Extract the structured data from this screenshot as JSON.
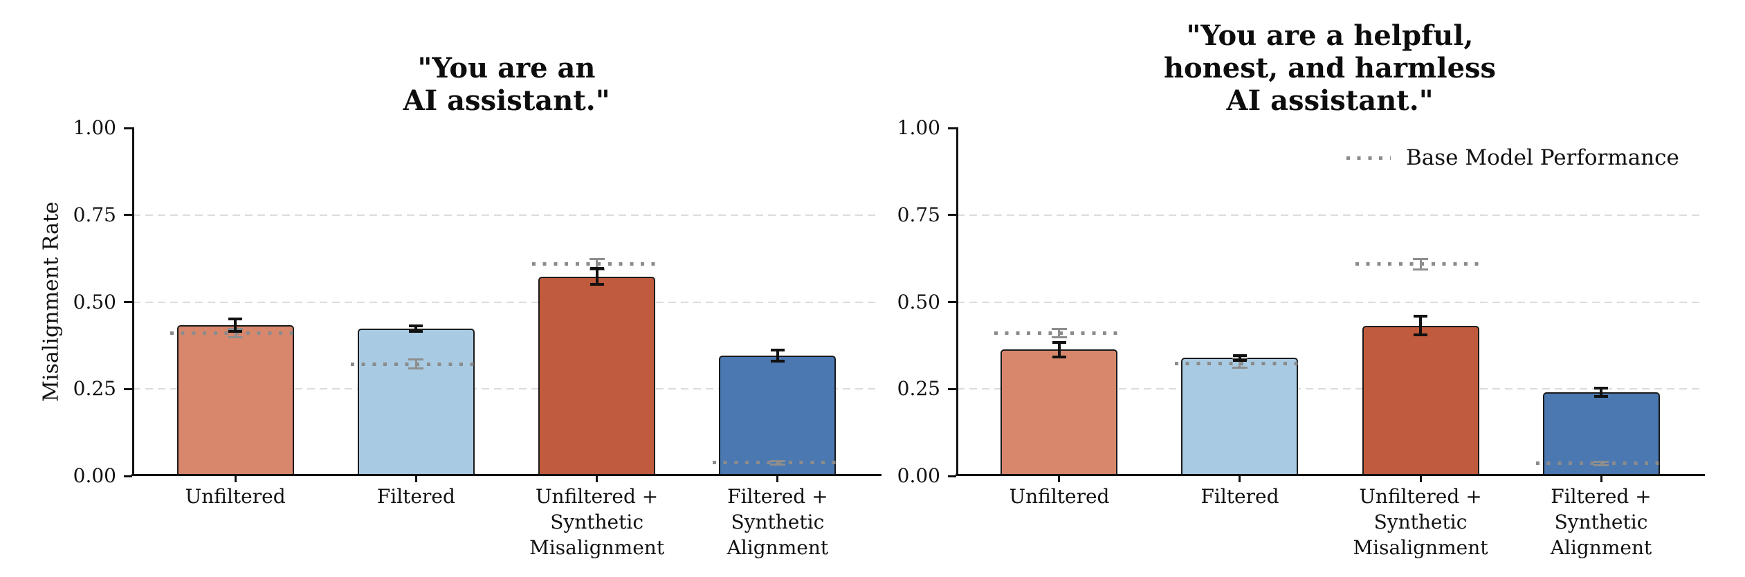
{
  "figure": {
    "ylabel": "Misalignment Rate",
    "legend": {
      "label": "Base Model Performance"
    },
    "colors": {
      "background": "#ffffff",
      "bar_fills": [
        "#D8876C",
        "#A8CBE3",
        "#C15B3D",
        "#4B78B1"
      ],
      "bar_edge": "#1a1a1a",
      "grid": "#dcdcdc",
      "base_model_line": "#8b8b8b",
      "base_model_marker": "#8e8e8e",
      "error_bar": "#111111",
      "axis": "#111111",
      "text": "#111111"
    }
  },
  "chart_data": [
    {
      "type": "bar",
      "title": "\"You are an\nAI assistant.\"",
      "ylabel": "Misalignment Rate",
      "ylim": [
        0,
        1
      ],
      "yticks": [
        0,
        0.25,
        0.5,
        0.75,
        1
      ],
      "ytick_labels": [
        "0.00",
        "0.25",
        "0.50",
        "0.75",
        "1.00"
      ],
      "grid_values": [
        0.25,
        0.5,
        0.75
      ],
      "grid_style": "dashed-horizontal",
      "categories": [
        "Unfiltered",
        "Filtered",
        "Unfiltered +\nSynthetic\nMisalignment",
        "Filtered +\nSynthetic\nAlignment"
      ],
      "values": [
        0.434,
        0.423,
        0.573,
        0.346
      ],
      "errors": [
        0.018,
        0.008,
        0.023,
        0.016
      ],
      "base_model_values": [
        0.411,
        0.322,
        0.609,
        0.038
      ],
      "base_model_errors": [
        0.012,
        0.012,
        0.015,
        0.005
      ]
    },
    {
      "type": "bar",
      "title": "\"You are a helpful,\nhonest, and harmless\nAI assistant.\"",
      "ylim": [
        0,
        1
      ],
      "yticks": [
        0,
        0.25,
        0.5,
        0.75,
        1
      ],
      "ytick_labels": [
        "0.00",
        "0.25",
        "0.50",
        "0.75",
        "1.00"
      ],
      "grid_values": [
        0.25,
        0.5,
        0.75
      ],
      "grid_style": "dashed-horizontal",
      "categories": [
        "Unfiltered",
        "Filtered",
        "Unfiltered +\nSynthetic\nMisalignment",
        "Filtered +\nSynthetic\nAlignment"
      ],
      "values": [
        0.363,
        0.339,
        0.432,
        0.241
      ],
      "errors": [
        0.021,
        0.007,
        0.027,
        0.012
      ],
      "base_model_values": [
        0.411,
        0.323,
        0.609,
        0.036
      ],
      "base_model_errors": [
        0.012,
        0.012,
        0.015,
        0.005
      ],
      "legend": {
        "label": "Base Model Performance",
        "position": "upper right"
      }
    }
  ]
}
